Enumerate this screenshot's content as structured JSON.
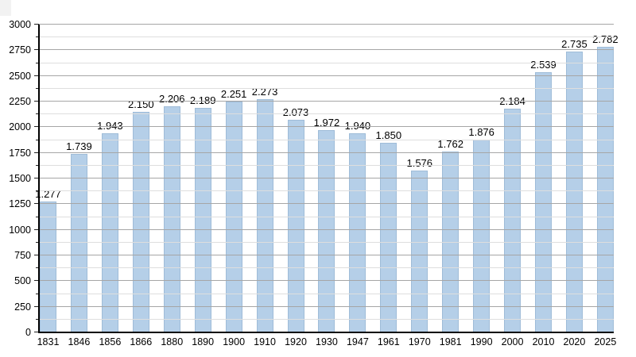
{
  "page": {
    "background_color": "#ffffff"
  },
  "chart_data": {
    "type": "bar",
    "title": "",
    "xlabel": "",
    "ylabel": "",
    "categories": [
      "1831",
      "1846",
      "1856",
      "1866",
      "1880",
      "1890",
      "1900",
      "1910",
      "1920",
      "1930",
      "1947",
      "1961",
      "1970",
      "1981",
      "1990",
      "2000",
      "2010",
      "2020",
      "2025"
    ],
    "values": [
      1277,
      1739,
      1943,
      2150,
      2206,
      2189,
      2251,
      2273,
      2073,
      1972,
      1940,
      1850,
      1576,
      1762,
      1876,
      2184,
      2539,
      2735,
      2782
    ],
    "value_labels": [
      "1.277",
      "1.739",
      "1.943",
      "2.150",
      "2.206",
      "2.189",
      "2.251",
      "2.273",
      "2.073",
      "1.972",
      "1.940",
      "1.850",
      "1.576",
      "1.762",
      "1.876",
      "2.184",
      "2.539",
      "2.735",
      "2.782"
    ],
    "ylim": [
      0,
      3000
    ],
    "y_major_step": 250,
    "y_minor_step": 125,
    "y_tick_labels": [
      "0",
      "250",
      "500",
      "750",
      "1000",
      "1250",
      "1500",
      "1750",
      "2000",
      "2250",
      "2500",
      "2750",
      "3000"
    ],
    "grid": true,
    "legend_position": "none",
    "colors": {
      "bar_fill": "#b5cfe8",
      "bar_border": "#9fbcd8",
      "grid_major": "#a6a6a6",
      "grid_minor": "#dedede",
      "axis": "#000000",
      "text": "#000000"
    }
  }
}
